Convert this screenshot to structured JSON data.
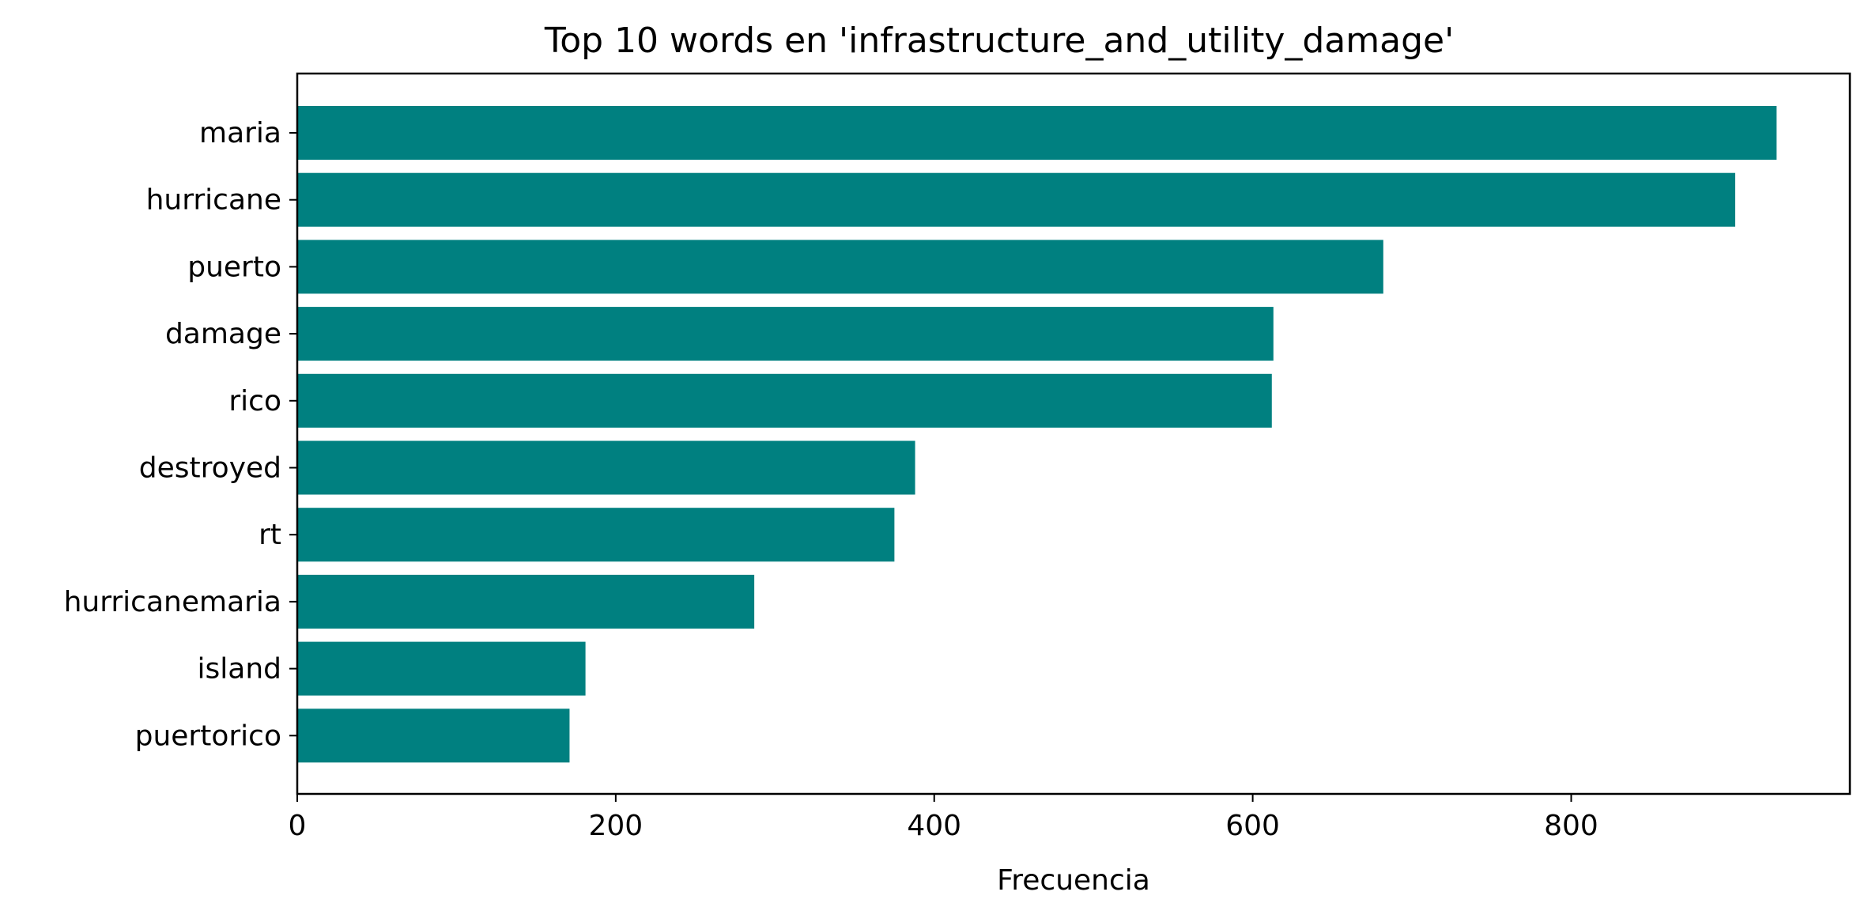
{
  "chart_data": {
    "type": "bar",
    "orientation": "horizontal",
    "title": "Top 10 words en 'infrastructure_and_utility_damage'",
    "xlabel": "Frecuencia",
    "ylabel": "",
    "categories": [
      "maria",
      "hurricane",
      "puerto",
      "damage",
      "rico",
      "destroyed",
      "rt",
      "hurricanemaria",
      "island",
      "puertorico"
    ],
    "values": [
      929,
      903,
      682,
      613,
      612,
      388,
      375,
      287,
      181,
      171
    ],
    "xlim": [
      0,
      975
    ],
    "xticks": [
      0,
      200,
      400,
      600,
      800
    ],
    "grid": false,
    "bar_color": "#008080"
  }
}
